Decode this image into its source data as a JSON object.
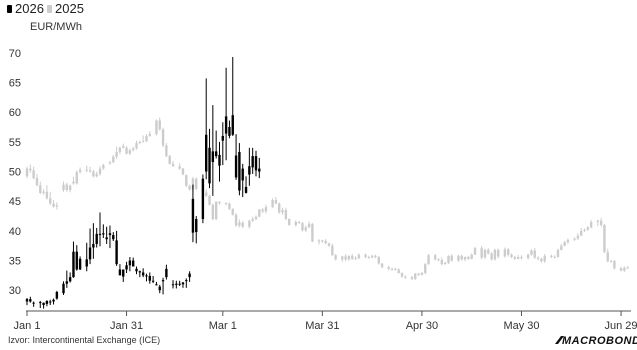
{
  "legend": [
    {
      "label": "2026",
      "color": "#000000",
      "icon": "candlestick-icon"
    },
    {
      "label": "2025",
      "color": "#cccccc",
      "icon": "candlestick-icon"
    }
  ],
  "source_text": "Izvor: Intercontinental Exchange (ICE)",
  "brand_text": "MACROBOND",
  "chart_data": {
    "type": "candlestick",
    "title": "",
    "xlabel": "",
    "ylabel": "",
    "unit_label": "EUR/MWh",
    "x_tick_labels": [
      "Jan 1",
      "Jan 31",
      "Mar 1",
      "Mar 31",
      "Apr 30",
      "May 30",
      "Jun 29"
    ],
    "x_tick_days": [
      0,
      30,
      59,
      89,
      119,
      149,
      179
    ],
    "y_ticks": [
      30,
      35,
      40,
      45,
      50,
      55,
      60,
      65,
      70
    ],
    "ylim": [
      26.5,
      72
    ],
    "xlim": [
      0,
      182
    ],
    "grid": false,
    "legend_position": "top-left",
    "series": [
      {
        "name": "2026",
        "color": "#000000",
        "day": [
          0,
          1,
          2,
          4,
          5,
          6,
          7,
          8,
          9,
          11,
          12,
          13,
          14,
          15,
          16,
          18,
          19,
          20,
          21,
          22,
          23,
          24,
          25,
          26,
          27,
          28,
          29,
          30,
          31,
          32,
          33,
          34,
          35,
          36,
          37,
          38,
          39,
          40,
          41,
          42,
          44,
          45,
          46,
          47,
          48,
          49,
          50,
          51,
          53,
          54,
          55,
          56,
          57,
          58,
          59,
          60,
          61,
          62,
          63,
          64,
          65,
          66,
          67,
          68,
          69,
          70
        ],
        "open": [
          28.1,
          28.5,
          27.9,
          27.9,
          27.5,
          27.7,
          28.0,
          28.1,
          28.6,
          29.5,
          31.1,
          31.5,
          32.2,
          36.5,
          33.5,
          34.0,
          35.2,
          37.2,
          37.8,
          39.5,
          39.4,
          38.6,
          39.6,
          39.3,
          38.4,
          33.5,
          32.3,
          33.5,
          34.2,
          35.0,
          33.6,
          33.2,
          33.0,
          32.5,
          32.4,
          31.6,
          31.0,
          30.0,
          31.5,
          33.6,
          30.9,
          30.9,
          31.1,
          31.0,
          31.7,
          32.2,
          45.4,
          39.8,
          42.0,
          56.2,
          48.0,
          51.6,
          53.4,
          51.0,
          55.2,
          59.3,
          56.0,
          56.2,
          52.7,
          53.3,
          48.5,
          46.4,
          49.5,
          50.7,
          52.6,
          50.0
        ],
        "high": [
          28.7,
          28.9,
          28.1,
          28.2,
          27.9,
          28.3,
          28.4,
          28.6,
          29.9,
          31.5,
          33.3,
          33.0,
          38.2,
          37.6,
          35.7,
          38.0,
          40.4,
          41.3,
          40.5,
          43.1,
          41.1,
          40.7,
          40.9,
          39.8,
          40.0,
          34.4,
          33.4,
          34.8,
          35.6,
          35.5,
          34.0,
          33.3,
          33.7,
          32.8,
          33.0,
          32.4,
          31.4,
          30.9,
          32.1,
          34.3,
          31.7,
          31.6,
          31.6,
          31.4,
          32.0,
          33.2,
          47.8,
          42.5,
          49.5,
          65.7,
          57.2,
          61.2,
          56.9,
          55.0,
          58.3,
          67.5,
          58.6,
          69.3,
          56.3,
          54.8,
          51.3,
          49.2,
          54.0,
          54.0,
          53.5,
          52.3
        ],
        "low": [
          27.5,
          27.9,
          27.2,
          27.0,
          26.9,
          27.3,
          27.5,
          27.6,
          28.4,
          29.2,
          30.4,
          31.3,
          32.1,
          33.3,
          33.4,
          33.2,
          34.4,
          35.3,
          37.2,
          37.4,
          38.8,
          37.8,
          37.1,
          38.3,
          34.1,
          32.6,
          31.4,
          32.9,
          33.2,
          34.0,
          32.7,
          32.2,
          32.2,
          31.5,
          31.1,
          31.2,
          30.8,
          29.5,
          29.3,
          31.8,
          30.3,
          30.3,
          30.7,
          30.4,
          30.4,
          31.4,
          38.1,
          37.9,
          41.3,
          48.7,
          47.2,
          45.9,
          52.2,
          48.3,
          51.1,
          51.9,
          55.6,
          56.0,
          48.6,
          46.0,
          45.7,
          46.3,
          47.6,
          49.6,
          49.2,
          48.9
        ],
        "close": [
          28.5,
          28.1,
          27.8,
          28.0,
          27.9,
          28.2,
          28.1,
          28.4,
          29.7,
          31.1,
          31.5,
          32.2,
          36.5,
          33.5,
          35.3,
          35.2,
          37.2,
          37.8,
          39.5,
          39.4,
          39.6,
          38.9,
          39.3,
          38.6,
          34.4,
          32.5,
          33.5,
          34.2,
          35.0,
          34.0,
          33.2,
          33.0,
          32.5,
          32.4,
          31.6,
          31.5,
          30.9,
          30.6,
          31.7,
          32.2,
          31.0,
          31.1,
          31.0,
          31.3,
          31.6,
          32.8,
          39.7,
          42.0,
          48.8,
          50.0,
          54.0,
          53.4,
          52.6,
          52.8,
          56.0,
          56.4,
          57.5,
          59.5,
          49.0,
          46.8,
          50.5,
          47.4,
          50.9,
          52.6,
          50.2,
          50.5
        ]
      },
      {
        "name": "2025",
        "color": "#cccccc",
        "day": [
          0,
          1,
          2,
          3,
          4,
          5,
          6,
          7,
          8,
          9,
          11,
          12,
          13,
          14,
          15,
          16,
          18,
          19,
          20,
          21,
          22,
          23,
          25,
          26,
          27,
          28,
          29,
          30,
          31,
          32,
          33,
          34,
          35,
          36,
          37,
          39,
          40,
          41,
          42,
          43,
          44,
          46,
          47,
          48,
          49,
          50,
          51,
          53,
          54,
          55,
          56,
          57,
          58,
          60,
          61,
          62,
          63,
          64,
          65,
          67,
          68,
          69,
          70,
          71,
          72,
          74,
          75,
          76,
          77,
          78,
          79,
          81,
          82,
          83,
          84,
          85,
          86,
          88,
          89,
          90,
          91,
          92,
          93,
          95,
          96,
          97,
          98,
          99,
          100,
          102,
          103,
          104,
          105,
          106,
          107,
          109,
          110,
          111,
          112,
          113,
          114,
          116,
          117,
          118,
          119,
          120,
          121,
          123,
          124,
          125,
          126,
          127,
          128,
          130,
          131,
          132,
          133,
          134,
          135,
          137,
          138,
          139,
          140,
          141,
          142,
          144,
          145,
          146,
          147,
          148,
          149,
          151,
          152,
          153,
          154,
          155,
          156,
          158,
          159,
          160,
          161,
          162,
          163,
          165,
          166,
          167,
          168,
          169,
          170,
          172,
          173,
          174,
          175,
          176,
          177,
          179,
          180,
          181
        ],
        "open": [
          49.2,
          50.5,
          50.2,
          48.9,
          47.7,
          46.4,
          46.6,
          45.5,
          44.6,
          44.1,
          46.9,
          47.8,
          46.9,
          48.3,
          48.0,
          49.9,
          50.3,
          50.2,
          50.0,
          49.2,
          49.6,
          50.5,
          51.4,
          51.6,
          52.5,
          53.3,
          54.3,
          54.0,
          53.0,
          53.6,
          53.9,
          54.8,
          55.0,
          55.1,
          56.0,
          56.3,
          58.6,
          57.1,
          54.4,
          52.6,
          51.3,
          50.9,
          50.5,
          49.4,
          47.6,
          47.0,
          48.8,
          47.1,
          46.5,
          45.9,
          44.4,
          42.0,
          44.9,
          44.7,
          44.6,
          43.7,
          42.7,
          40.9,
          41.4,
          40.7,
          41.7,
          42.0,
          42.4,
          43.6,
          43.3,
          44.0,
          45.2,
          44.6,
          43.1,
          43.5,
          42.0,
          41.0,
          41.5,
          41.3,
          40.1,
          40.6,
          41.2,
          38.2,
          38.4,
          38.3,
          37.9,
          37.5,
          35.9,
          35.2,
          35.7,
          35.2,
          35.8,
          35.3,
          35.4,
          36.0,
          35.6,
          35.5,
          35.8,
          35.6,
          34.5,
          33.9,
          33.6,
          33.6,
          33.5,
          32.9,
          32.3,
          32.2,
          31.9,
          32.8,
          32.6,
          32.9,
          34.4,
          35.9,
          35.2,
          35.1,
          34.4,
          34.6,
          35.8,
          35.0,
          35.8,
          35.2,
          35.6,
          35.3,
          36.0,
          37.1,
          35.5,
          36.8,
          36.2,
          35.2,
          36.8,
          35.7,
          36.9,
          36.0,
          35.6,
          35.3,
          35.6,
          35.4,
          36.0,
          36.7,
          35.5,
          35.3,
          34.9,
          35.8,
          35.6,
          35.6,
          36.8,
          37.5,
          38.1,
          38.5,
          38.7,
          39.2,
          40.0,
          40.2,
          40.6,
          41.5,
          41.7,
          41.0,
          36.4,
          34.9,
          34.9,
          33.7,
          33.3,
          33.8,
          33.8,
          34.0,
          33.5
        ],
        "high": [
          50.8,
          51.2,
          50.8,
          49.6,
          48.3,
          47.0,
          47.7,
          46.6,
          45.2,
          44.8,
          48.3,
          48.1,
          47.8,
          49.1,
          50.2,
          50.7,
          51.0,
          50.8,
          50.3,
          50.0,
          50.9,
          51.3,
          51.8,
          52.8,
          54.2,
          54.2,
          54.7,
          54.3,
          53.9,
          54.2,
          55.2,
          55.2,
          56.1,
          56.3,
          56.8,
          58.8,
          59.1,
          57.4,
          54.8,
          52.8,
          51.8,
          51.4,
          50.6,
          49.5,
          47.8,
          49.1,
          49.0,
          47.4,
          47.0,
          46.1,
          44.6,
          45.0,
          45.0,
          44.8,
          44.8,
          43.8,
          43.0,
          41.9,
          41.6,
          41.9,
          42.4,
          42.6,
          43.7,
          43.9,
          44.4,
          45.5,
          45.7,
          44.8,
          43.9,
          43.9,
          42.1,
          41.8,
          41.7,
          41.5,
          40.9,
          41.6,
          41.3,
          38.6,
          38.5,
          38.6,
          38.0,
          37.8,
          36.1,
          35.8,
          36.1,
          35.9,
          36.1,
          35.7,
          36.2,
          36.2,
          35.8,
          36.0,
          36.0,
          35.8,
          34.6,
          34.1,
          33.8,
          33.8,
          33.7,
          33.0,
          32.5,
          32.4,
          32.9,
          32.9,
          33.1,
          34.6,
          36.1,
          36.1,
          35.4,
          35.5,
          34.8,
          35.9,
          36.1,
          36.0,
          36.0,
          35.7,
          35.8,
          36.2,
          37.3,
          37.5,
          37.0,
          37.1,
          36.4,
          37.0,
          37.0,
          37.2,
          37.1,
          36.2,
          35.8,
          35.9,
          35.9,
          36.2,
          36.9,
          37.1,
          35.7,
          35.5,
          36.1,
          36.0,
          35.9,
          37.0,
          37.8,
          38.3,
          38.7,
          38.9,
          39.6,
          40.5,
          40.4,
          40.8,
          41.8,
          41.9,
          42.2,
          41.2,
          37.0,
          35.1,
          35.1,
          34.0,
          34.0,
          34.1,
          34.3,
          34.2,
          34.2
        ],
        "low": [
          48.9,
          49.8,
          48.7,
          47.5,
          46.2,
          46.1,
          45.3,
          44.4,
          43.9,
          43.6,
          46.6,
          46.6,
          46.5,
          47.8,
          47.8,
          49.7,
          49.9,
          49.8,
          49.0,
          49.0,
          49.3,
          50.3,
          51.1,
          51.4,
          52.1,
          52.9,
          53.9,
          52.9,
          52.8,
          53.4,
          53.7,
          54.6,
          54.9,
          55.0,
          55.9,
          56.1,
          56.9,
          54.1,
          52.4,
          51.2,
          50.8,
          50.3,
          49.4,
          47.4,
          46.8,
          46.6,
          46.9,
          46.2,
          45.7,
          44.3,
          41.8,
          41.8,
          44.4,
          44.3,
          43.5,
          42.6,
          40.7,
          40.6,
          40.5,
          40.4,
          41.5,
          41.8,
          42.3,
          43.0,
          42.9,
          43.9,
          44.5,
          42.9,
          42.7,
          41.8,
          40.9,
          40.7,
          41.2,
          39.9,
          39.8,
          40.5,
          38.1,
          37.7,
          38.0,
          37.8,
          37.3,
          35.8,
          35.0,
          34.8,
          34.9,
          35.0,
          35.1,
          35.1,
          35.2,
          35.4,
          35.3,
          35.4,
          35.4,
          34.3,
          33.7,
          33.3,
          33.3,
          33.3,
          32.8,
          32.1,
          31.9,
          31.7,
          31.7,
          32.4,
          32.5,
          32.7,
          34.3,
          35.0,
          34.9,
          34.2,
          34.3,
          34.4,
          34.8,
          34.8,
          35.0,
          34.9,
          35.1,
          35.2,
          35.9,
          35.2,
          35.3,
          36.0,
          35.0,
          35.0,
          35.4,
          35.5,
          35.7,
          35.4,
          35.1,
          35.2,
          35.2,
          35.2,
          35.8,
          35.3,
          35.0,
          34.6,
          34.6,
          35.4,
          35.4,
          35.5,
          36.7,
          37.4,
          37.8,
          38.3,
          38.5,
          39.1,
          39.8,
          40.0,
          40.4,
          40.8,
          40.7,
          36.3,
          34.7,
          34.7,
          33.5,
          33.2,
          33.1,
          33.6,
          33.7,
          33.3,
          33.3
        ],
        "close": [
          50.5,
          50.2,
          48.9,
          47.7,
          46.4,
          46.6,
          45.5,
          44.6,
          44.1,
          44.3,
          47.8,
          46.9,
          47.6,
          48.0,
          49.9,
          50.3,
          50.2,
          50.0,
          49.2,
          49.6,
          50.5,
          51.1,
          51.6,
          52.5,
          53.3,
          54.0,
          54.0,
          53.0,
          53.6,
          53.9,
          54.8,
          55.0,
          55.1,
          56.0,
          56.3,
          58.6,
          57.1,
          54.4,
          52.6,
          51.3,
          50.9,
          50.5,
          49.5,
          47.6,
          47.0,
          48.8,
          47.1,
          46.5,
          45.9,
          44.4,
          42.0,
          44.9,
          44.7,
          44.6,
          43.7,
          42.7,
          40.9,
          41.4,
          40.7,
          41.7,
          42.0,
          42.4,
          43.6,
          43.3,
          44.0,
          45.2,
          44.6,
          43.1,
          43.5,
          42.0,
          41.0,
          41.5,
          41.3,
          40.1,
          40.6,
          41.2,
          38.2,
          38.4,
          38.3,
          37.9,
          37.5,
          35.9,
          35.2,
          35.7,
          35.2,
          35.8,
          35.3,
          35.4,
          36.0,
          35.6,
          35.5,
          35.8,
          35.6,
          34.5,
          33.9,
          33.6,
          33.6,
          33.5,
          32.9,
          32.3,
          32.2,
          31.9,
          32.8,
          32.6,
          32.9,
          34.4,
          35.9,
          35.2,
          35.1,
          34.4,
          34.6,
          35.8,
          35.0,
          35.8,
          35.2,
          35.6,
          35.3,
          36.0,
          37.1,
          35.5,
          36.8,
          36.2,
          35.2,
          36.8,
          35.7,
          36.9,
          36.0,
          35.6,
          35.3,
          35.6,
          35.4,
          36.0,
          36.7,
          35.5,
          35.3,
          34.9,
          35.8,
          35.6,
          35.6,
          36.8,
          37.5,
          38.1,
          38.5,
          38.7,
          39.2,
          40.0,
          40.2,
          40.6,
          41.5,
          41.7,
          41.0,
          36.4,
          34.9,
          34.9,
          33.7,
          33.3,
          33.8,
          33.8,
          34.0,
          33.5,
          33.6
        ]
      }
    ]
  }
}
